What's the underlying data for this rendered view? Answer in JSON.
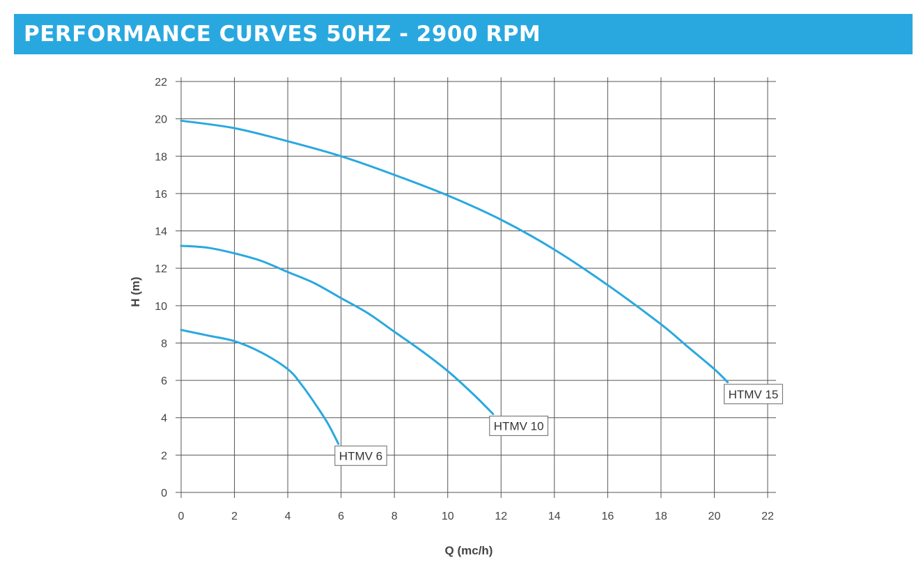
{
  "header": {
    "title": "PERFORMANCE CURVES 50HZ - 2900 RPM"
  },
  "colors": {
    "accent": "#29a8df",
    "curve": "#29a8df",
    "grid": "#555555",
    "text": "#444444"
  },
  "chart_data": {
    "type": "line",
    "title": "PERFORMANCE CURVES 50HZ - 2900 RPM",
    "xlabel": "Q (mc/h)",
    "ylabel": "H (m)",
    "xlim": [
      0,
      22
    ],
    "ylim": [
      0,
      22
    ],
    "xticks": [
      "0",
      "2",
      "4",
      "6",
      "8",
      "10",
      "12",
      "14",
      "16",
      "18",
      "20",
      "22"
    ],
    "yticks": [
      "0",
      "2",
      "4",
      "6",
      "8",
      "10",
      "12",
      "14",
      "16",
      "18",
      "20",
      "22"
    ],
    "grid": true,
    "series": [
      {
        "name": "HTMV 6",
        "x": [
          0,
          1,
          2,
          3,
          4,
          4.5,
          5,
          5.5,
          5.9
        ],
        "y": [
          8.7,
          8.4,
          8.1,
          7.5,
          6.6,
          5.8,
          4.8,
          3.7,
          2.6
        ]
      },
      {
        "name": "HTMV 10",
        "x": [
          0,
          1,
          2,
          3,
          4,
          5,
          6,
          7,
          8,
          9,
          10,
          11,
          11.7
        ],
        "y": [
          13.2,
          13.1,
          12.8,
          12.4,
          11.8,
          11.2,
          10.4,
          9.6,
          8.6,
          7.6,
          6.5,
          5.2,
          4.2
        ]
      },
      {
        "name": "HTMV 15",
        "x": [
          0,
          2,
          4,
          6,
          8,
          10,
          12,
          14,
          16,
          18,
          19,
          20,
          20.5
        ],
        "y": [
          19.9,
          19.5,
          18.8,
          18.0,
          17.0,
          15.9,
          14.6,
          13.0,
          11.1,
          9.0,
          7.8,
          6.6,
          5.9
        ]
      }
    ]
  }
}
